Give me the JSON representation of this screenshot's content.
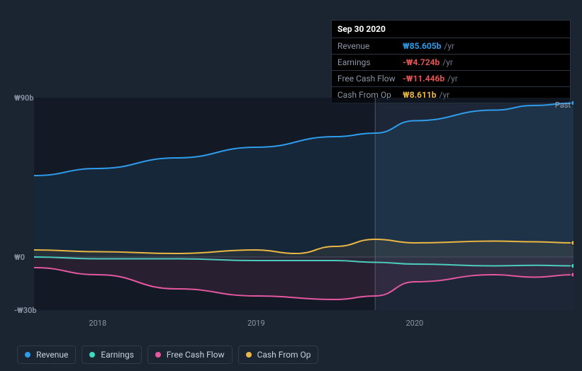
{
  "tooltip": {
    "date": "Sep 30 2020",
    "unit": "/yr",
    "rows": [
      {
        "label": "Revenue",
        "value": "₩85.605b",
        "cls": "blue"
      },
      {
        "label": "Earnings",
        "value": "-₩4.724b",
        "cls": "red"
      },
      {
        "label": "Free Cash Flow",
        "value": "-₩11.446b",
        "cls": "red"
      },
      {
        "label": "Cash From Op",
        "value": "₩8.611b",
        "cls": "yellow"
      }
    ]
  },
  "chart": {
    "type": "area",
    "background_color": "#1b2431",
    "plot_bg_left": "rgba(12,18,28,0.55)",
    "plot_bg_right": "rgba(30,40,58,0.55)",
    "ylim": [
      -30,
      90
    ],
    "yticks": [
      {
        "v": 90,
        "label": "₩90b"
      },
      {
        "v": 0,
        "label": "₩0"
      },
      {
        "v": -30,
        "label": "-₩30b"
      }
    ],
    "xlim": [
      2017.6,
      2021.0
    ],
    "xticks": [
      {
        "v": 2018,
        "label": "2018"
      },
      {
        "v": 2019,
        "label": "2019"
      },
      {
        "v": 2020,
        "label": "2020"
      }
    ],
    "split_x": 2019.75,
    "past_label": "Past",
    "marker_x": 2019.75,
    "series": [
      {
        "name": "Revenue",
        "color": "#2f9ceb",
        "fill_opacity": 0.1,
        "points": [
          [
            2017.6,
            46
          ],
          [
            2018.0,
            50
          ],
          [
            2018.5,
            56
          ],
          [
            2019.0,
            62
          ],
          [
            2019.5,
            68
          ],
          [
            2019.75,
            70
          ],
          [
            2020.0,
            77
          ],
          [
            2020.5,
            83
          ],
          [
            2020.75,
            85.6
          ],
          [
            2021.0,
            87
          ]
        ]
      },
      {
        "name": "Cash From Op",
        "color": "#eab744",
        "fill_opacity": 0.08,
        "points": [
          [
            2017.6,
            4
          ],
          [
            2018.0,
            3
          ],
          [
            2018.5,
            2
          ],
          [
            2019.0,
            4
          ],
          [
            2019.25,
            2
          ],
          [
            2019.5,
            6
          ],
          [
            2019.75,
            10
          ],
          [
            2020.0,
            8
          ],
          [
            2020.5,
            9
          ],
          [
            2020.75,
            8.6
          ],
          [
            2021.0,
            8
          ]
        ]
      },
      {
        "name": "Earnings",
        "color": "#3dd9c1",
        "fill_opacity": 0.05,
        "points": [
          [
            2017.6,
            0
          ],
          [
            2018.0,
            -1
          ],
          [
            2018.5,
            -1
          ],
          [
            2019.0,
            -2
          ],
          [
            2019.5,
            -2
          ],
          [
            2019.75,
            -3
          ],
          [
            2020.0,
            -4
          ],
          [
            2020.5,
            -5
          ],
          [
            2020.75,
            -4.7
          ],
          [
            2021.0,
            -5
          ]
        ]
      },
      {
        "name": "Free Cash Flow",
        "color": "#e557a0",
        "fill_opacity": 0.1,
        "points": [
          [
            2017.6,
            -6
          ],
          [
            2018.0,
            -10
          ],
          [
            2018.5,
            -18
          ],
          [
            2019.0,
            -22
          ],
          [
            2019.5,
            -24
          ],
          [
            2019.75,
            -22
          ],
          [
            2020.0,
            -14
          ],
          [
            2020.5,
            -10
          ],
          [
            2020.75,
            -11.4
          ],
          [
            2021.0,
            -10
          ]
        ]
      }
    ],
    "legend": [
      {
        "label": "Revenue",
        "color": "#2f9ceb"
      },
      {
        "label": "Earnings",
        "color": "#3dd9c1"
      },
      {
        "label": "Free Cash Flow",
        "color": "#e557a0"
      },
      {
        "label": "Cash From Op",
        "color": "#eab744"
      }
    ]
  }
}
